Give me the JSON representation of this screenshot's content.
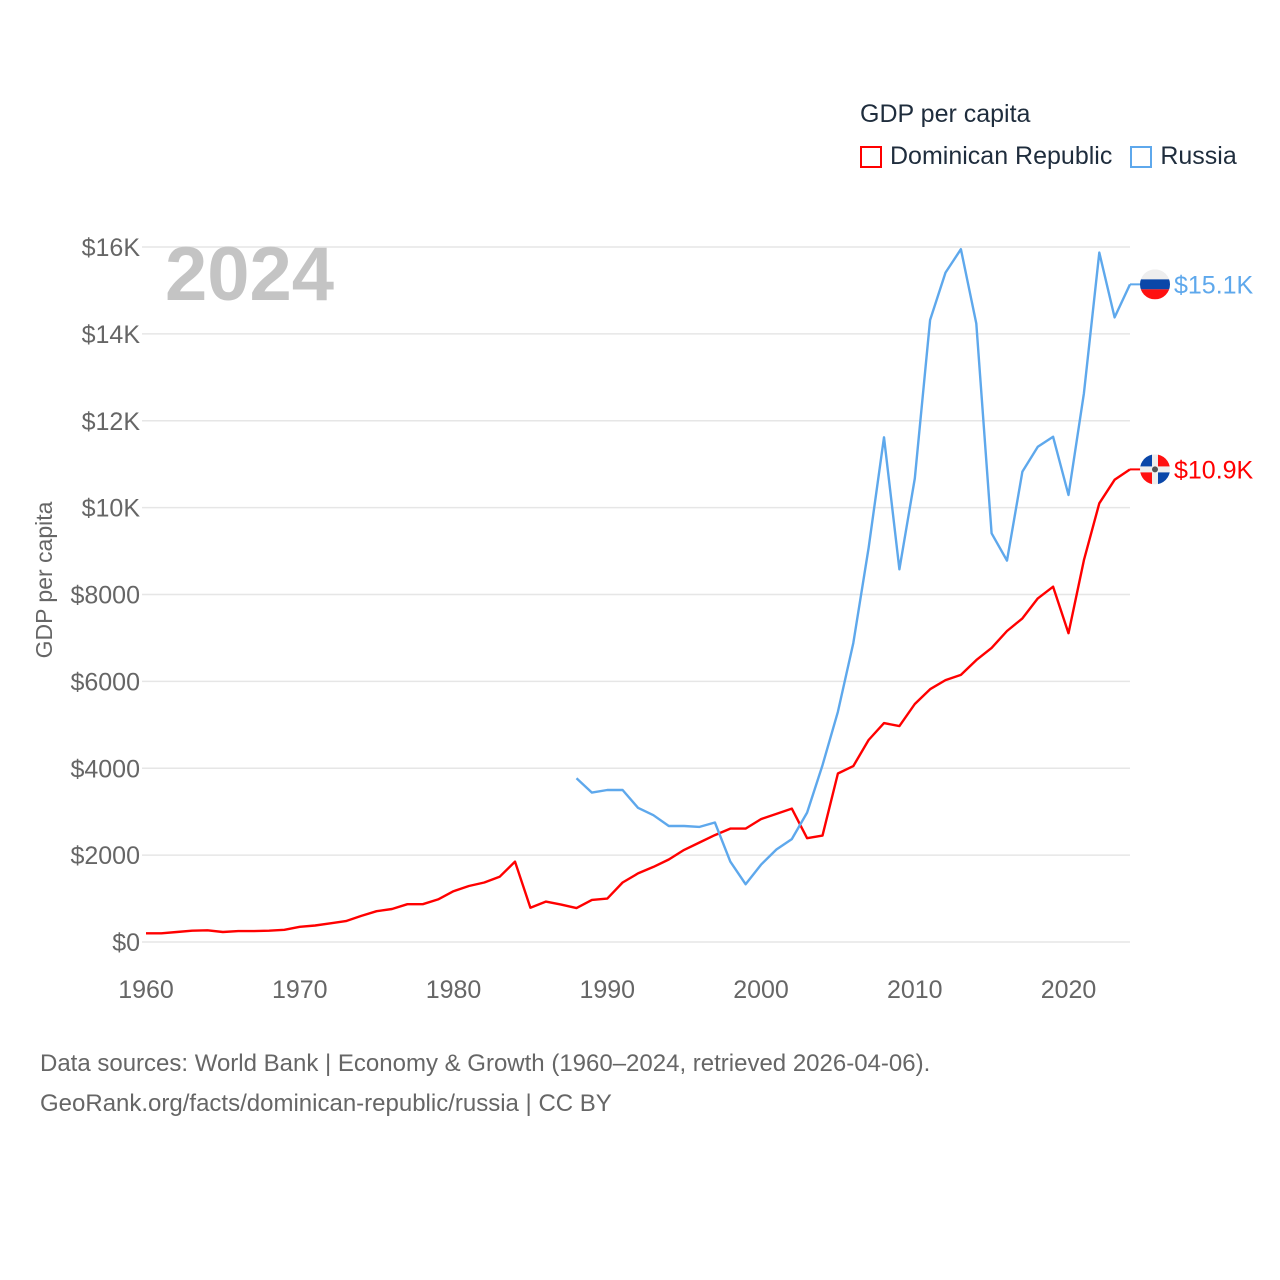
{
  "legend": {
    "title": "GDP per capita"
  },
  "footer": {
    "line1": "Data sources: World Bank | Economy & Growth (1960–2024, retrieved 2026-04-06).",
    "line2": "GeoRank.org/facts/dominican-republic/russia | CC BY"
  },
  "chart_data": {
    "type": "line",
    "title": "GDP per capita",
    "year_watermark": "2024",
    "xlabel": "",
    "ylabel": "GDP per capita",
    "xlim": [
      1960,
      2024
    ],
    "ylim": [
      0,
      16000
    ],
    "xticks": [
      1960,
      1970,
      1980,
      1990,
      2000,
      2010,
      2020
    ],
    "yticks": [
      0,
      2000,
      4000,
      6000,
      8000,
      10000,
      12000,
      14000,
      16000
    ],
    "ytick_labels": [
      "$0",
      "$2000",
      "$4000",
      "$6000",
      "$8000",
      "$10K",
      "$12K",
      "$14K",
      "$16K"
    ],
    "grid": true,
    "legend_position": "top-right",
    "series": [
      {
        "name": "Dominican Republic",
        "color": "#ff0000",
        "end_label": "$10.9K",
        "flag": "dominican-republic-flag",
        "start_year": 1960,
        "values": [
          200,
          200,
          230,
          260,
          270,
          230,
          250,
          250,
          260,
          280,
          350,
          380,
          430,
          480,
          600,
          710,
          760,
          870,
          870,
          980,
          1170,
          1290,
          1370,
          1500,
          1850,
          790,
          930,
          860,
          780,
          970,
          1000,
          1370,
          1580,
          1730,
          1900,
          2120,
          2290,
          2460,
          2610,
          2610,
          2830,
          2950,
          3070,
          2390,
          2450,
          3880,
          4050,
          4650,
          5040,
          4970,
          5480,
          5820,
          6030,
          6150,
          6490,
          6770,
          7160,
          7450,
          7910,
          8180,
          7110,
          8790,
          10100,
          10640,
          10880
        ]
      },
      {
        "name": "Russia",
        "color": "#5ea8ec",
        "end_label": "$15.1K",
        "flag": "russia-flag",
        "start_year": 1988,
        "values": [
          3770,
          3440,
          3500,
          3500,
          3090,
          2920,
          2670,
          2670,
          2650,
          2750,
          1850,
          1330,
          1780,
          2130,
          2370,
          2980,
          4070,
          5300,
          6880,
          9070,
          11620,
          8580,
          10670,
          14320,
          15410,
          15950,
          14240,
          9410,
          8780,
          10830,
          11400,
          11630,
          10290,
          12630,
          15870,
          14380,
          15140
        ]
      }
    ]
  }
}
